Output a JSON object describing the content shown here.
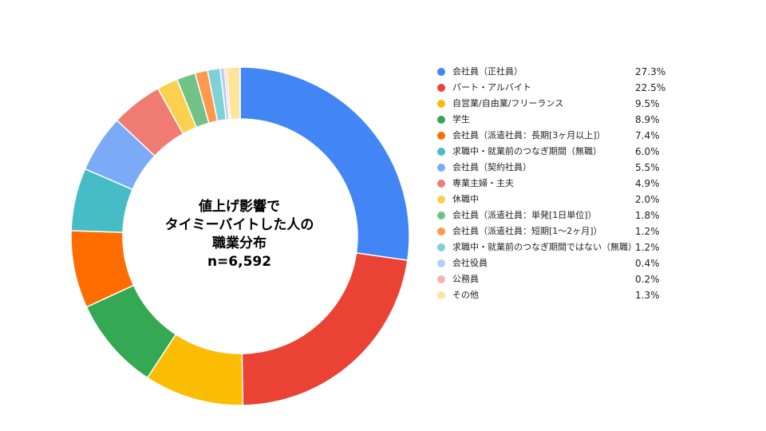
{
  "chart_data": {
    "type": "pie",
    "title_lines": [
      "値上げ影響で",
      "タイミーバイトした人の",
      "職業分布",
      "n=6,592"
    ],
    "legend_position": "right",
    "value_suffix": "%",
    "slices": [
      {
        "label": "会社員（正社員）",
        "value": 27.3,
        "value_label": "27.3%",
        "color": "#4285F4"
      },
      {
        "label": "パート・アルバイト",
        "value": 22.5,
        "value_label": "22.5%",
        "color": "#EA4335"
      },
      {
        "label": "自営業/自由業/フリーランス",
        "value": 9.5,
        "value_label": "9.5%",
        "color": "#FBBC04"
      },
      {
        "label": "学生",
        "value": 8.9,
        "value_label": "8.9%",
        "color": "#34A853"
      },
      {
        "label": "会社員（派遣社員：長期[3ヶ月以上]）",
        "value": 7.4,
        "value_label": "7.4%",
        "color": "#FF6D01"
      },
      {
        "label": "求職中・就業前のつなぎ期間（無職）",
        "value": 6.0,
        "value_label": "6.0%",
        "color": "#46BDC6"
      },
      {
        "label": "会社員（契約社員）",
        "value": 5.5,
        "value_label": "5.5%",
        "color": "#7BAAF7"
      },
      {
        "label": "専業主婦・主夫",
        "value": 4.9,
        "value_label": "4.9%",
        "color": "#F07B72"
      },
      {
        "label": "休職中",
        "value": 2.0,
        "value_label": "2.0%",
        "color": "#FCD04F"
      },
      {
        "label": "会社員（派遣社員：単発[1日単位]）",
        "value": 1.8,
        "value_label": "1.8%",
        "color": "#71C287"
      },
      {
        "label": "会社員（派遣社員：短期[1〜2ヶ月]）",
        "value": 1.2,
        "value_label": "1.2%",
        "color": "#FF994D"
      },
      {
        "label": "求職中・就業前のつなぎ期間ではない（無職）",
        "value": 1.2,
        "value_label": "1.2%",
        "color": "#7ED1D7"
      },
      {
        "label": "会社役員",
        "value": 0.4,
        "value_label": "0.4%",
        "color": "#B3CEFB"
      },
      {
        "label": "公務員",
        "value": 0.2,
        "value_label": "0.2%",
        "color": "#F7B4AE"
      },
      {
        "label": "その他",
        "value": 1.3,
        "value_label": "1.3%",
        "color": "#FDE49B"
      }
    ]
  }
}
